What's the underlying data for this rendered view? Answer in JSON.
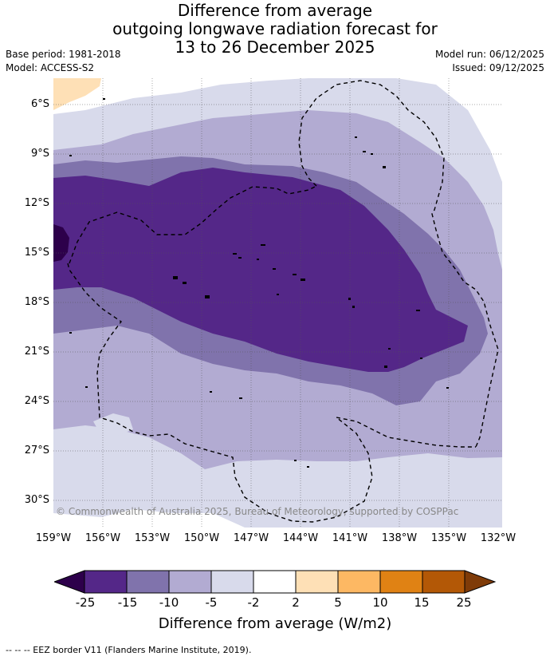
{
  "title": {
    "line1": "Difference from average",
    "line2": "outgoing longwave radiation forecast for",
    "line3": "13 to 26 December 2025"
  },
  "meta_left": {
    "base_period": "Base period: 1981-2018",
    "model": "Model: ACCESS-S2"
  },
  "meta_right": {
    "model_run": "Model run: 06/12/2025",
    "issued": "Issued: 09/12/2025"
  },
  "map": {
    "lat_labels": [
      "6°S",
      "9°S",
      "12°S",
      "15°S",
      "18°S",
      "21°S",
      "24°S",
      "27°S",
      "30°S"
    ],
    "lon_labels": [
      "159°W",
      "156°W",
      "153°W",
      "150°W",
      "147°W",
      "144°W",
      "141°W",
      "138°W",
      "135°W",
      "132°W"
    ],
    "copyright": "© Commonwealth of Australia 2025, Bureau of Meteorology, supported by COSPPac"
  },
  "colorbar": {
    "labels": [
      "-25",
      "-15",
      "-10",
      "-5",
      "-2",
      "2",
      "5",
      "10",
      "15",
      "25"
    ],
    "colors": [
      "#2d004b",
      "#542788",
      "#8073ac",
      "#b2abd2",
      "#d8daeb",
      "#ffffff",
      "#fee0b6",
      "#fdb863",
      "#e08214",
      "#b35806",
      "#7f3b08"
    ],
    "title": "Difference from average (W/m2)"
  },
  "footer": "-- -- -- EEZ border V11 (Flanders Marine Institute, 2019)."
}
